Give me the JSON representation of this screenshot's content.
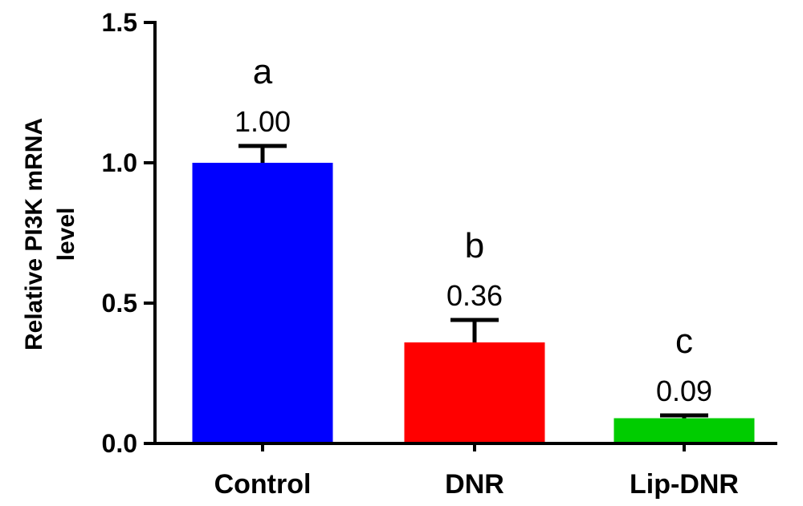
{
  "chart_data": {
    "type": "bar",
    "categories": [
      "Control",
      "DNR",
      "Lip-DNR"
    ],
    "values": [
      1.0,
      0.36,
      0.09
    ],
    "error_upper": [
      1.06,
      0.44,
      0.1
    ],
    "value_labels": [
      "1.00",
      "0.36",
      "0.09"
    ],
    "significance_labels": [
      "a",
      "b",
      "c"
    ],
    "colors": [
      "#0000ff",
      "#ff0000",
      "#00cc00"
    ],
    "ylabel_lines": [
      "Relative PI3K mRNA",
      "level"
    ],
    "xlabel": "",
    "ylim": [
      0,
      1.5
    ],
    "yticks": [
      0.0,
      0.5,
      1.0,
      1.5
    ],
    "ytick_labels": [
      "0.0",
      "0.5",
      "1.0",
      "1.5"
    ],
    "grid": false
  }
}
